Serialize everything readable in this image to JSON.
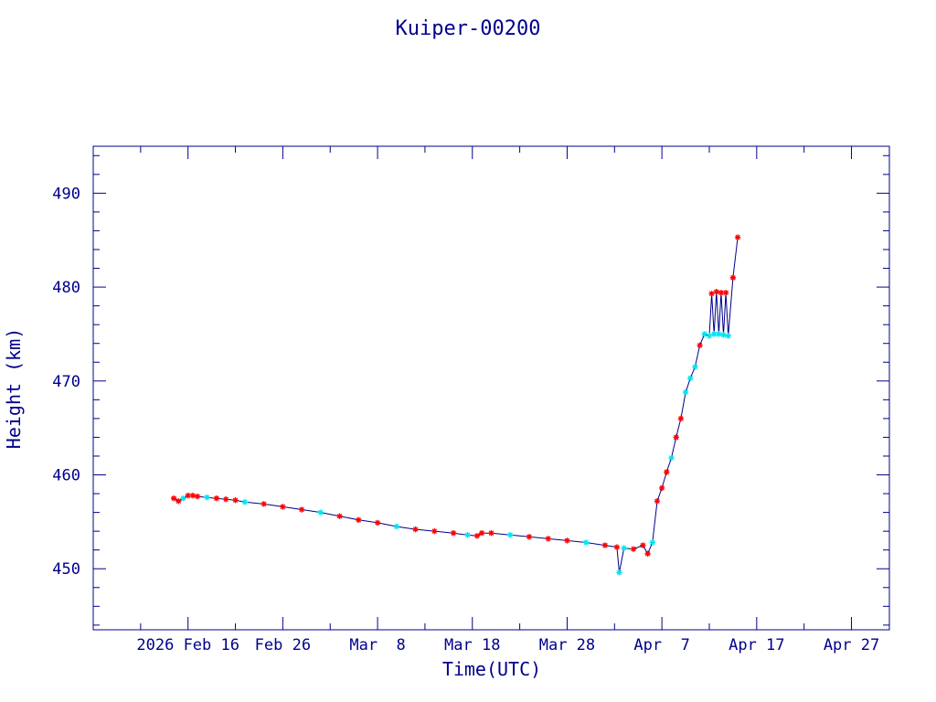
{
  "chart_data": {
    "type": "line",
    "title": "Kuiper-00200",
    "xlabel": "Time(UTC)",
    "ylabel": "Height (km)",
    "x_tick_labels": [
      "2026 Feb 16",
      "Feb 26",
      "Mar  8",
      "Mar 18",
      "Mar 28",
      "Apr  7",
      "Apr 17",
      "Apr 27"
    ],
    "y_ticks": [
      450,
      460,
      470,
      480,
      490
    ],
    "xlim": [
      "2026-02-06",
      "2026-05-01"
    ],
    "ylim": [
      443.5,
      495
    ],
    "grid": false,
    "colors": {
      "axes": "#00008b",
      "line": "#00008b",
      "marker_primary": "#ff0000",
      "marker_secondary": "#00e5ee"
    },
    "series": [
      {
        "marker": "asterisk",
        "x": [
          "2026-02-14T12:00",
          "2026-02-15T00:00",
          "2026-02-15T12:00",
          "2026-02-16T00:00",
          "2026-02-16T12:00",
          "2026-02-17T00:00",
          "2026-02-18T00:00",
          "2026-02-19T00:00",
          "2026-02-20T00:00",
          "2026-02-21T00:00",
          "2026-02-22T00:00",
          "2026-02-24T00:00",
          "2026-02-26T00:00",
          "2026-02-28T00:00",
          "2026-03-02T00:00",
          "2026-03-04T00:00",
          "2026-03-06T00:00",
          "2026-03-08T00:00",
          "2026-03-10T00:00",
          "2026-03-12T00:00",
          "2026-03-14T00:00",
          "2026-03-16T00:00",
          "2026-03-17T12:00",
          "2026-03-18T12:00",
          "2026-03-19T00:00",
          "2026-03-20T00:00",
          "2026-03-22T00:00",
          "2026-03-24T00:00",
          "2026-03-26T00:00",
          "2026-03-28T00:00",
          "2026-03-30T00:00",
          "2026-04-01T00:00",
          "2026-04-02T06:00",
          "2026-04-02T12:00",
          "2026-04-03T00:00",
          "2026-04-04T00:00",
          "2026-04-05T00:00",
          "2026-04-05T12:00",
          "2026-04-06T00:00",
          "2026-04-06T12:00",
          "2026-04-07T00:00",
          "2026-04-07T12:00",
          "2026-04-08T00:00",
          "2026-04-08T12:00",
          "2026-04-09T00:00",
          "2026-04-09T12:00",
          "2026-04-10T00:00",
          "2026-04-10T12:00",
          "2026-04-11T00:00",
          "2026-04-11T12:00",
          "2026-04-12T00:00",
          "2026-04-12T06:00",
          "2026-04-12T12:00",
          "2026-04-12T18:00",
          "2026-04-13T00:00",
          "2026-04-13T06:00",
          "2026-04-13T12:00",
          "2026-04-13T18:00",
          "2026-04-14T00:00",
          "2026-04-14T12:00",
          "2026-04-15T00:00"
        ],
        "y": [
          457.5,
          457.2,
          457.5,
          457.8,
          457.8,
          457.7,
          457.6,
          457.5,
          457.4,
          457.3,
          457.1,
          456.9,
          456.6,
          456.3,
          456.0,
          455.6,
          455.2,
          454.9,
          454.5,
          454.2,
          454.0,
          453.8,
          453.6,
          453.5,
          453.8,
          453.8,
          453.6,
          453.4,
          453.2,
          453.0,
          452.8,
          452.5,
          452.3,
          449.6,
          452.2,
          452.1,
          452.5,
          451.6,
          452.8,
          457.2,
          458.6,
          460.3,
          461.8,
          464.0,
          466.0,
          468.8,
          470.3,
          471.5,
          473.8,
          475.0,
          474.8,
          479.3,
          475.0,
          479.5,
          475.0,
          479.4,
          474.9,
          479.4,
          474.8,
          481.0,
          485.3
        ]
      }
    ]
  }
}
